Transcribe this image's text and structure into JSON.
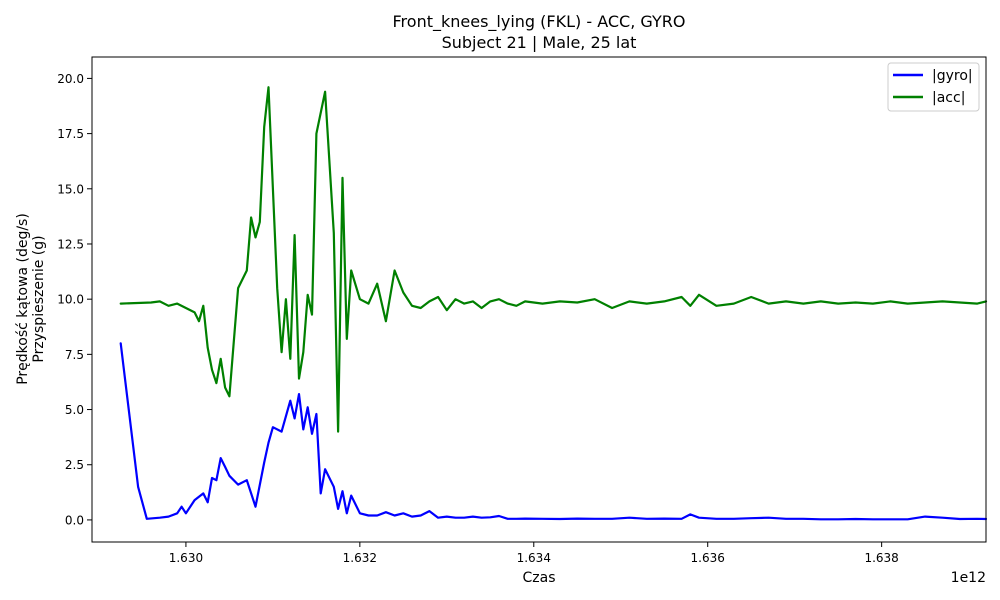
{
  "chart_data": {
    "type": "line",
    "title_line1": "Front_knees_lying (FKL) - ACC, GYRO",
    "title_line2": "Subject 21 | Male, 25 lat",
    "xlabel": "Czas",
    "ylabel_line1": "Prędkość kątowa (deg/s)",
    "ylabel_line2": "Przyspieszenie (g)",
    "x_offset_label": "1e12",
    "x_tick_values": [
      1.63,
      1.632,
      1.634,
      1.636,
      1.638
    ],
    "x_tick_labels": [
      "1.630",
      "1.632",
      "1.634",
      "1.636",
      "1.638"
    ],
    "y_tick_values": [
      0,
      2.5,
      5,
      7.5,
      10,
      12.5,
      15,
      17.5,
      20
    ],
    "y_tick_labels": [
      "0.0",
      "2.5",
      "5.0",
      "7.5",
      "10.0",
      "12.5",
      "15.0",
      "17.5",
      "20.0"
    ],
    "xlim": [
      1.62892,
      1.6392
    ],
    "ylim": [
      -1.0,
      20.97
    ],
    "legend_position": "top-right",
    "grid": false,
    "series": [
      {
        "name": "|gyro|",
        "color": "#0000ff",
        "x": [
          1.62925,
          1.62945,
          1.62955,
          1.6297,
          1.6298,
          1.6299,
          1.62995,
          1.63,
          1.6301,
          1.6302,
          1.63025,
          1.6303,
          1.63035,
          1.6304,
          1.63045,
          1.6305,
          1.6306,
          1.6307,
          1.6308,
          1.6309,
          1.63095,
          1.631,
          1.6311,
          1.6312,
          1.63125,
          1.6313,
          1.63135,
          1.6314,
          1.63145,
          1.6315,
          1.63155,
          1.6316,
          1.6317,
          1.63175,
          1.6318,
          1.63185,
          1.6319,
          1.632,
          1.6321,
          1.6322,
          1.6323,
          1.6324,
          1.6325,
          1.6326,
          1.6327,
          1.6328,
          1.6329,
          1.633,
          1.6331,
          1.6332,
          1.6333,
          1.6334,
          1.6335,
          1.6336,
          1.6337,
          1.6338,
          1.6339,
          1.6341,
          1.6343,
          1.6345,
          1.6347,
          1.6349,
          1.6351,
          1.6353,
          1.6355,
          1.6357,
          1.6358,
          1.6359,
          1.6361,
          1.6363,
          1.6365,
          1.6367,
          1.6369,
          1.6371,
          1.6373,
          1.6375,
          1.6377,
          1.6379,
          1.6381,
          1.6383,
          1.6385,
          1.6387,
          1.6389,
          1.6391,
          1.6392
        ],
        "y": [
          8.0,
          1.5,
          0.05,
          0.1,
          0.15,
          0.3,
          0.6,
          0.3,
          0.9,
          1.2,
          0.8,
          1.9,
          1.8,
          2.8,
          2.4,
          2.0,
          1.6,
          1.8,
          0.6,
          2.6,
          3.5,
          4.2,
          4.0,
          5.4,
          4.6,
          5.7,
          4.1,
          5.1,
          3.9,
          4.8,
          1.2,
          2.3,
          1.5,
          0.5,
          1.3,
          0.3,
          1.1,
          0.3,
          0.2,
          0.2,
          0.35,
          0.2,
          0.3,
          0.15,
          0.2,
          0.4,
          0.1,
          0.15,
          0.1,
          0.1,
          0.15,
          0.1,
          0.12,
          0.18,
          0.05,
          0.05,
          0.06,
          0.05,
          0.04,
          0.06,
          0.05,
          0.05,
          0.1,
          0.05,
          0.06,
          0.05,
          0.25,
          0.1,
          0.05,
          0.05,
          0.08,
          0.1,
          0.05,
          0.05,
          0.03,
          0.03,
          0.04,
          0.03,
          0.03,
          0.03,
          0.15,
          0.1,
          0.04,
          0.05,
          0.04
        ]
      },
      {
        "name": "|acc|",
        "color": "#008000",
        "x": [
          1.62925,
          1.6296,
          1.6297,
          1.6298,
          1.6299,
          1.63,
          1.6301,
          1.63015,
          1.6302,
          1.63025,
          1.6303,
          1.63035,
          1.6304,
          1.63045,
          1.6305,
          1.6306,
          1.6307,
          1.63075,
          1.6308,
          1.63085,
          1.6309,
          1.63095,
          1.631,
          1.63105,
          1.6311,
          1.63115,
          1.6312,
          1.63125,
          1.6313,
          1.63135,
          1.6314,
          1.63145,
          1.6315,
          1.6316,
          1.6317,
          1.63175,
          1.6318,
          1.63185,
          1.6319,
          1.632,
          1.6321,
          1.6322,
          1.6323,
          1.6324,
          1.6325,
          1.6326,
          1.6327,
          1.6328,
          1.6329,
          1.633,
          1.6331,
          1.6332,
          1.6333,
          1.6334,
          1.6335,
          1.6336,
          1.6337,
          1.6338,
          1.6339,
          1.6341,
          1.6343,
          1.6345,
          1.6347,
          1.6349,
          1.6351,
          1.6353,
          1.6355,
          1.6357,
          1.6358,
          1.6359,
          1.6361,
          1.6363,
          1.6365,
          1.6367,
          1.6369,
          1.6371,
          1.6373,
          1.6375,
          1.6377,
          1.6379,
          1.6381,
          1.6383,
          1.6385,
          1.6387,
          1.6389,
          1.6391,
          1.6392
        ],
        "y": [
          9.8,
          9.85,
          9.9,
          9.7,
          9.8,
          9.6,
          9.4,
          9.0,
          9.7,
          7.8,
          6.8,
          6.2,
          7.3,
          6.0,
          5.6,
          10.5,
          11.3,
          13.7,
          12.8,
          13.5,
          17.8,
          19.6,
          15.0,
          10.5,
          7.6,
          10.0,
          7.3,
          12.9,
          6.4,
          7.6,
          10.2,
          9.3,
          17.5,
          19.4,
          13.0,
          4.0,
          15.5,
          8.2,
          11.3,
          10.0,
          9.8,
          10.7,
          9.0,
          11.3,
          10.3,
          9.7,
          9.6,
          9.9,
          10.1,
          9.5,
          10.0,
          9.8,
          9.9,
          9.6,
          9.9,
          10.0,
          9.8,
          9.7,
          9.9,
          9.8,
          9.9,
          9.85,
          10.0,
          9.6,
          9.9,
          9.8,
          9.9,
          10.1,
          9.7,
          10.2,
          9.7,
          9.8,
          10.1,
          9.8,
          9.9,
          9.8,
          9.9,
          9.8,
          9.85,
          9.8,
          9.9,
          9.8,
          9.85,
          9.9,
          9.85,
          9.8,
          9.9
        ]
      }
    ]
  }
}
